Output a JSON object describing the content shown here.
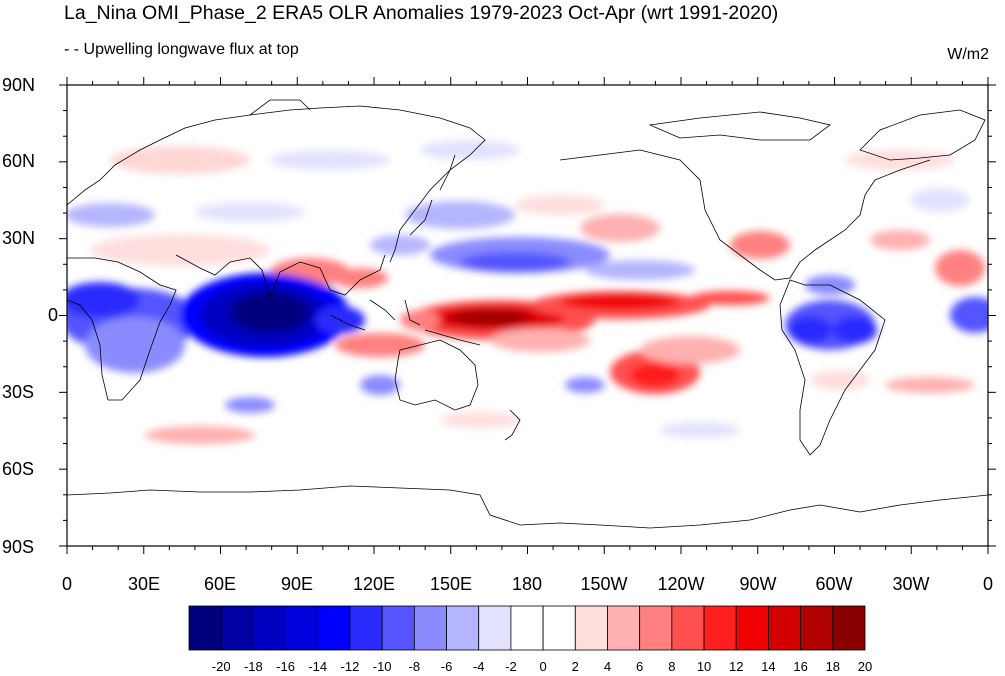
{
  "header": {
    "title": "La_Nina OMI_Phase_2 ERA5 OLR Anomalies 1979-2023 Oct-Apr (wrt 1991-2020)",
    "subtitle": "- - Upwelling longwave flux at top",
    "units": "W/m2"
  },
  "axes": {
    "lat_labels": [
      "90N",
      "60N",
      "30N",
      "0",
      "30S",
      "60S",
      "90S"
    ],
    "lon_labels": [
      "0",
      "30E",
      "60E",
      "90E",
      "120E",
      "150E",
      "180",
      "150W",
      "120W",
      "90W",
      "60W",
      "30W",
      "0"
    ]
  },
  "colorbar": {
    "labels": [
      "-20",
      "-18",
      "-16",
      "-14",
      "-12",
      "-10",
      "-8",
      "-6",
      "-4",
      "-2",
      "0",
      "2",
      "4",
      "6",
      "8",
      "10",
      "12",
      "14",
      "16",
      "18",
      "20"
    ],
    "colors": [
      "#00007f",
      "#0000a3",
      "#0000c0",
      "#0000dc",
      "#0000ff",
      "#2b2bff",
      "#5555ff",
      "#8b8bff",
      "#b5b5ff",
      "#e2e2ff",
      "#ffffff",
      "#ffffff",
      "#ffdede",
      "#ffb0b0",
      "#ff8080",
      "#ff5050",
      "#ff1f1f",
      "#f00000",
      "#d20000",
      "#b00000",
      "#8a0000"
    ]
  },
  "colors": {
    "negative_strong": "#0000c8",
    "positive_strong": "#cc0000",
    "coastline": "#000000"
  }
}
